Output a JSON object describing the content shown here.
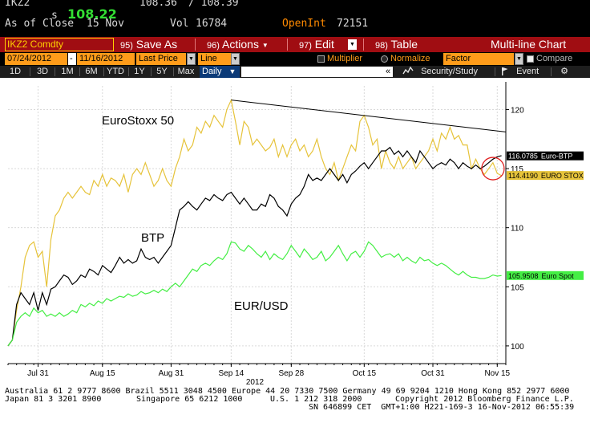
{
  "quote": {
    "ticker_fragment": "IKZ2",
    "price_marker": "s",
    "last_price": "108.22",
    "bid": "108.36",
    "ask": "/ 108.39",
    "as_of_label": "As of Close",
    "as_of_date": "15 Nov",
    "vol_label": "Vol",
    "vol_value": "16784",
    "oi_label": "OpenInt",
    "oi_value": "72151"
  },
  "titlebar": {
    "security": "IKZ2 Comdty",
    "menus": [
      {
        "num": "95)",
        "label": "Save As"
      },
      {
        "num": "96)",
        "label": "Actions"
      },
      {
        "num": "97)",
        "label": "Edit"
      },
      {
        "num": "98)",
        "label": "Table"
      }
    ],
    "chart_title": "Multi-line Chart"
  },
  "params": {
    "start_date": "07/24/2012",
    "dash": "-",
    "end_date": "11/16/2012",
    "field": "Last Price",
    "style": "Line",
    "multiplier_label": "Multiplier",
    "normalize_label": "Normalize",
    "factor_label": "Factor",
    "compare_label": "Compare"
  },
  "toolbar": {
    "periods": [
      "1D",
      "3D",
      "1M",
      "6M",
      "YTD",
      "1Y",
      "5Y",
      "Max"
    ],
    "interval": "Daily",
    "interval_arrow": "▼",
    "collapse": "«",
    "security_study": "Security/Study",
    "event": "Event",
    "gear": "⚙"
  },
  "annotations": {
    "eurostoxx": "EuroStoxx 50",
    "btp": "BTP",
    "eurusd": "EUR/USD"
  },
  "colors": {
    "eurostoxx": "#e6c33a",
    "btp": "#000000",
    "eurusd": "#44ee44",
    "trendline": "#000000",
    "circle": "#e02020"
  },
  "chart_data": {
    "type": "line",
    "ylim": [
      98.5,
      122
    ],
    "yticks": [
      100,
      105,
      110,
      115,
      120
    ],
    "xticks": [
      {
        "label": "Jul 31",
        "day": 7
      },
      {
        "label": "Aug 15",
        "day": 22
      },
      {
        "label": "Aug 31",
        "day": 38
      },
      {
        "label": "Sep 14",
        "day": 52
      },
      {
        "label": "Sep 28",
        "day": 66
      },
      {
        "label": "Oct 15",
        "day": 83
      },
      {
        "label": "Oct 31",
        "day": 99
      },
      {
        "label": "Nov 15",
        "day": 114
      }
    ],
    "year_label": "2012",
    "series": [
      {
        "key": "eurostoxx",
        "x": [
          0,
          1,
          2,
          3,
          4,
          5,
          6,
          7,
          8,
          9,
          10,
          11,
          12,
          13,
          14,
          15,
          16,
          17,
          18,
          19,
          20,
          21,
          22,
          23,
          24,
          25,
          26,
          27,
          28,
          29,
          30,
          31,
          32,
          33,
          34,
          35,
          36,
          37,
          38,
          39,
          40,
          41,
          42,
          43,
          44,
          45,
          46,
          47,
          48,
          49,
          50,
          51,
          52,
          53,
          54,
          55,
          56,
          57,
          58,
          59,
          60,
          61,
          62,
          63,
          64,
          65,
          66,
          67,
          68,
          69,
          70,
          71,
          72,
          73,
          74,
          75,
          76,
          77,
          78,
          79,
          80,
          81,
          82,
          83,
          84,
          85,
          86,
          87,
          88,
          89,
          90,
          91,
          92,
          93,
          94,
          95,
          96,
          97,
          98,
          99,
          100,
          101,
          102,
          103,
          104,
          105,
          106,
          107,
          108,
          109,
          110,
          111,
          112,
          113,
          114,
          115
        ],
        "values": [
          100.0,
          100.5,
          103.0,
          105.0,
          107.5,
          108.5,
          108.8,
          107.5,
          108.0,
          105.0,
          109.0,
          111.0,
          111.5,
          112.5,
          113.0,
          112.5,
          113.0,
          113.5,
          113.0,
          112.8,
          114.0,
          113.5,
          114.5,
          113.5,
          114.2,
          114.0,
          113.5,
          114.5,
          113.0,
          114.5,
          115.0,
          114.5,
          115.5,
          114.5,
          113.5,
          114.0,
          115.0,
          114.0,
          113.5,
          115.0,
          116.0,
          117.5,
          116.5,
          117.0,
          118.5,
          118.0,
          119.0,
          118.5,
          119.5,
          119.0,
          118.5,
          120.0,
          120.8,
          119.0,
          117.0,
          119.0,
          118.5,
          117.0,
          117.5,
          117.0,
          116.5,
          116.8,
          117.5,
          116.0,
          117.0,
          116.0,
          117.0,
          117.5,
          116.5,
          117.0,
          116.0,
          116.5,
          117.5,
          116.0,
          115.0,
          114.5,
          115.5,
          114.0,
          115.0,
          116.0,
          117.0,
          116.5,
          119.0,
          119.5,
          118.5,
          117.0,
          117.5,
          115.0,
          116.5,
          115.5,
          115.0,
          116.0,
          115.0,
          115.5,
          116.0,
          115.0,
          115.5,
          116.0,
          116.5,
          117.5,
          116.5,
          118.0,
          117.5,
          118.5,
          117.5,
          117.8,
          117.0,
          117.0,
          115.0,
          115.8,
          115.0,
          114.5,
          115.0,
          115.5,
          114.6,
          114.4
        ]
      },
      {
        "key": "btp",
        "x": [
          0,
          1,
          2,
          3,
          4,
          5,
          6,
          7,
          8,
          9,
          10,
          11,
          12,
          13,
          14,
          15,
          16,
          17,
          18,
          19,
          20,
          21,
          22,
          23,
          24,
          25,
          26,
          27,
          28,
          29,
          30,
          31,
          32,
          33,
          34,
          35,
          36,
          37,
          38,
          39,
          40,
          41,
          42,
          43,
          44,
          45,
          46,
          47,
          48,
          49,
          50,
          51,
          52,
          53,
          54,
          55,
          56,
          57,
          58,
          59,
          60,
          61,
          62,
          63,
          64,
          65,
          66,
          67,
          68,
          69,
          70,
          71,
          72,
          73,
          74,
          75,
          76,
          77,
          78,
          79,
          80,
          81,
          82,
          83,
          84,
          85,
          86,
          87,
          88,
          89,
          90,
          91,
          92,
          93,
          94,
          95,
          96,
          97,
          98,
          99,
          100,
          101,
          102,
          103,
          104,
          105,
          106,
          107,
          108,
          109,
          110,
          111,
          112,
          113,
          114,
          115
        ],
        "values": [
          100.0,
          100.5,
          103.5,
          104.5,
          104.0,
          103.5,
          104.5,
          103.0,
          104.5,
          103.5,
          104.8,
          105.0,
          105.5,
          106.0,
          105.8,
          105.2,
          105.5,
          106.0,
          105.8,
          106.5,
          106.3,
          106.0,
          106.8,
          106.5,
          106.2,
          106.8,
          107.5,
          107.0,
          107.3,
          107.0,
          107.2,
          108.2,
          107.5,
          107.3,
          107.5,
          107.0,
          107.5,
          108.0,
          108.5,
          110.0,
          111.5,
          111.8,
          112.2,
          111.8,
          111.5,
          112.0,
          112.5,
          112.3,
          112.8,
          112.5,
          112.3,
          112.8,
          113.0,
          112.5,
          112.0,
          112.5,
          112.0,
          111.5,
          111.5,
          112.0,
          111.8,
          112.8,
          112.5,
          111.8,
          111.5,
          111.0,
          112.0,
          112.5,
          112.8,
          113.5,
          114.5,
          114.0,
          114.2,
          114.0,
          114.5,
          115.0,
          114.5,
          114.0,
          114.5,
          113.8,
          114.5,
          114.8,
          115.2,
          115.5,
          115.0,
          115.5,
          116.0,
          116.5,
          116.5,
          116.8,
          116.2,
          116.5,
          116.0,
          116.5,
          116.0,
          115.5,
          116.5,
          116.0,
          115.5,
          115.0,
          115.3,
          115.5,
          115.3,
          115.8,
          115.5,
          115.0,
          115.5,
          115.2,
          115.0,
          115.3,
          115.0,
          115.2,
          115.5,
          115.8,
          116.0,
          116.1
        ]
      },
      {
        "key": "eurusd",
        "x": [
          0,
          1,
          2,
          3,
          4,
          5,
          6,
          7,
          8,
          9,
          10,
          11,
          12,
          13,
          14,
          15,
          16,
          17,
          18,
          19,
          20,
          21,
          22,
          23,
          24,
          25,
          26,
          27,
          28,
          29,
          30,
          31,
          32,
          33,
          34,
          35,
          36,
          37,
          38,
          39,
          40,
          41,
          42,
          43,
          44,
          45,
          46,
          47,
          48,
          49,
          50,
          51,
          52,
          53,
          54,
          55,
          56,
          57,
          58,
          59,
          60,
          61,
          62,
          63,
          64,
          65,
          66,
          67,
          68,
          69,
          70,
          71,
          72,
          73,
          74,
          75,
          76,
          77,
          78,
          79,
          80,
          81,
          82,
          83,
          84,
          85,
          86,
          87,
          88,
          89,
          90,
          91,
          92,
          93,
          94,
          95,
          96,
          97,
          98,
          99,
          100,
          101,
          102,
          103,
          104,
          105,
          106,
          107,
          108,
          109,
          110,
          111,
          112,
          113,
          114,
          115
        ],
        "values": [
          100.0,
          100.5,
          102.0,
          102.5,
          102.8,
          102.5,
          103.2,
          102.8,
          103.0,
          102.5,
          102.7,
          102.5,
          102.8,
          102.5,
          102.7,
          103.0,
          102.8,
          103.5,
          103.3,
          103.6,
          103.4,
          103.8,
          103.6,
          104.0,
          103.8,
          104.0,
          104.2,
          104.1,
          104.4,
          104.2,
          104.3,
          104.6,
          104.4,
          104.5,
          104.7,
          104.5,
          104.8,
          104.6,
          105.0,
          105.3,
          105.0,
          105.5,
          106.0,
          106.5,
          106.3,
          106.8,
          107.0,
          106.8,
          107.2,
          107.5,
          107.3,
          107.8,
          108.8,
          108.7,
          108.2,
          108.0,
          108.5,
          108.2,
          107.8,
          107.5,
          108.0,
          107.3,
          107.8,
          107.5,
          107.3,
          107.8,
          108.5,
          108.0,
          107.5,
          108.2,
          107.8,
          107.3,
          107.5,
          108.0,
          107.2,
          107.5,
          108.0,
          108.5,
          107.8,
          107.2,
          107.8,
          108.0,
          107.5,
          108.0,
          108.8,
          108.5,
          108.0,
          107.5,
          107.7,
          107.8,
          107.5,
          107.8,
          107.2,
          107.5,
          107.2,
          107.0,
          107.5,
          107.2,
          107.3,
          107.0,
          106.8,
          107.0,
          106.8,
          106.5,
          106.2,
          106.0,
          106.3,
          106.0,
          105.8,
          105.8,
          105.7,
          105.7,
          105.8,
          106.0,
          105.9,
          105.95
        ]
      }
    ],
    "trendline": {
      "x": [
        52,
        116
      ],
      "values": [
        120.8,
        118.1
      ]
    },
    "circle_marker": {
      "day": 113,
      "value": 115.0
    },
    "last_value_labels": [
      {
        "key": "btp",
        "value": "116.0785",
        "name": "Euro-BTP",
        "y": 116.0785,
        "bg": "#000000",
        "fg": "#ffffff"
      },
      {
        "key": "eurostoxx",
        "value": "114.4190",
        "name": "EURO STOX",
        "y": 114.419,
        "bg": "#e6c33a",
        "fg": "#000000"
      },
      {
        "key": "eurusd",
        "value": "105.9508",
        "name": "Euro Spot",
        "y": 105.9508,
        "bg": "#44ee44",
        "fg": "#000000"
      }
    ]
  },
  "footer": {
    "line1": "Australia 61 2 9777 8600 Brazil 5511 3048 4500 Europe 44 20 7330 7500 Germany 49 69 9204 1210 Hong Kong 852 2977 6000",
    "line2_left": "Japan 81 3 3201 8900",
    "line2_mid": "Singapore 65 6212 1000",
    "line2_us": "U.S. 1 212 318 2000",
    "line2_right": "Copyright 2012 Bloomberg Finance L.P.",
    "line3": "SN 646899 CET  GMT+1:00 H221-169-3 16-Nov-2012 06:55:39"
  }
}
